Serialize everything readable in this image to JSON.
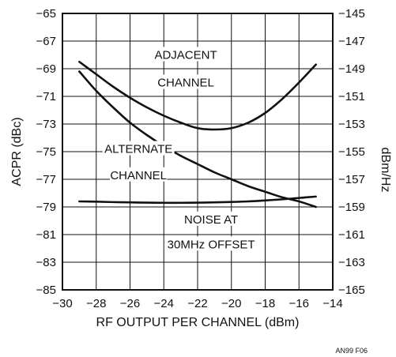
{
  "chart_data": {
    "type": "line",
    "xlabel": "RF OUTPUT PER CHANNEL (dBm)",
    "ylabel": "ACPR (dBc)",
    "y2label": "dBm/Hz",
    "xlim": [
      -30,
      -14
    ],
    "ylim": [
      -85,
      -65
    ],
    "y2lim": [
      -165,
      -145
    ],
    "xticks": [
      -30,
      -28,
      -26,
      -24,
      -22,
      -20,
      -18,
      -16,
      -14
    ],
    "xtick_labels": [
      "−30",
      "−28",
      "−26",
      "−24",
      "−22",
      "−20",
      "−18",
      "−16",
      "−14"
    ],
    "yticks": [
      -65,
      -67,
      -69,
      -71,
      -73,
      -75,
      -77,
      -79,
      -81,
      -83,
      -85
    ],
    "ytick_labels": [
      "−65",
      "−67",
      "−69",
      "−71",
      "−73",
      "−75",
      "−77",
      "−79",
      "−81",
      "−83",
      "−85"
    ],
    "y2ticks": [
      -145,
      -147,
      -149,
      -151,
      -153,
      -155,
      -157,
      -159,
      -161,
      -163,
      -165
    ],
    "y2tick_labels": [
      "−145",
      "−147",
      "−149",
      "−151",
      "−153",
      "−155",
      "−157",
      "−159",
      "−161",
      "−163",
      "−165"
    ],
    "grid": true,
    "series": [
      {
        "name": "ADJACENT CHANNEL",
        "axis": "left",
        "x": [
          -29,
          -28,
          -27,
          -26,
          -25,
          -24,
          -23,
          -22,
          -21,
          -20,
          -19,
          -18,
          -17,
          -16,
          -15
        ],
        "y": [
          -68.5,
          -69.4,
          -70.3,
          -71.1,
          -71.8,
          -72.4,
          -72.9,
          -73.3,
          -73.4,
          -73.3,
          -72.9,
          -72.2,
          -71.2,
          -70.0,
          -68.7
        ]
      },
      {
        "name": "ALTERNATE CHANNEL",
        "axis": "left",
        "x": [
          -29,
          -28,
          -27,
          -26,
          -25,
          -24,
          -23,
          -22,
          -21,
          -20,
          -19,
          -18,
          -17,
          -16,
          -15
        ],
        "y": [
          -69.2,
          -70.6,
          -71.8,
          -72.9,
          -73.8,
          -74.6,
          -75.3,
          -75.9,
          -76.5,
          -77.0,
          -77.5,
          -77.9,
          -78.3,
          -78.6,
          -79.0
        ]
      },
      {
        "name": "NOISE AT 30MHz OFFSET",
        "axis": "right",
        "x": [
          -29,
          -28,
          -27,
          -26,
          -25,
          -24,
          -23,
          -22,
          -21,
          -20,
          -19,
          -18,
          -17,
          -16,
          -15
        ],
        "y": [
          -158.6,
          -158.62,
          -158.65,
          -158.67,
          -158.69,
          -158.7,
          -158.7,
          -158.69,
          -158.67,
          -158.64,
          -158.6,
          -158.53,
          -158.45,
          -158.35,
          -158.25
        ]
      }
    ],
    "annotations": [
      {
        "lines": [
          "ADJACENT",
          "CHANNEL"
        ],
        "x": -22.7,
        "y": -68.0,
        "y_line2": -70.0
      },
      {
        "lines": [
          "ALTERNATE",
          "CHANNEL"
        ],
        "x": -25.5,
        "y": -74.8,
        "y_line2": -76.7
      },
      {
        "lines": [
          "NOISE AT",
          "30MHz OFFSET"
        ],
        "x": -21.2,
        "y": -79.9,
        "y_line2": -81.7
      }
    ]
  },
  "footer": "AN99 F06"
}
